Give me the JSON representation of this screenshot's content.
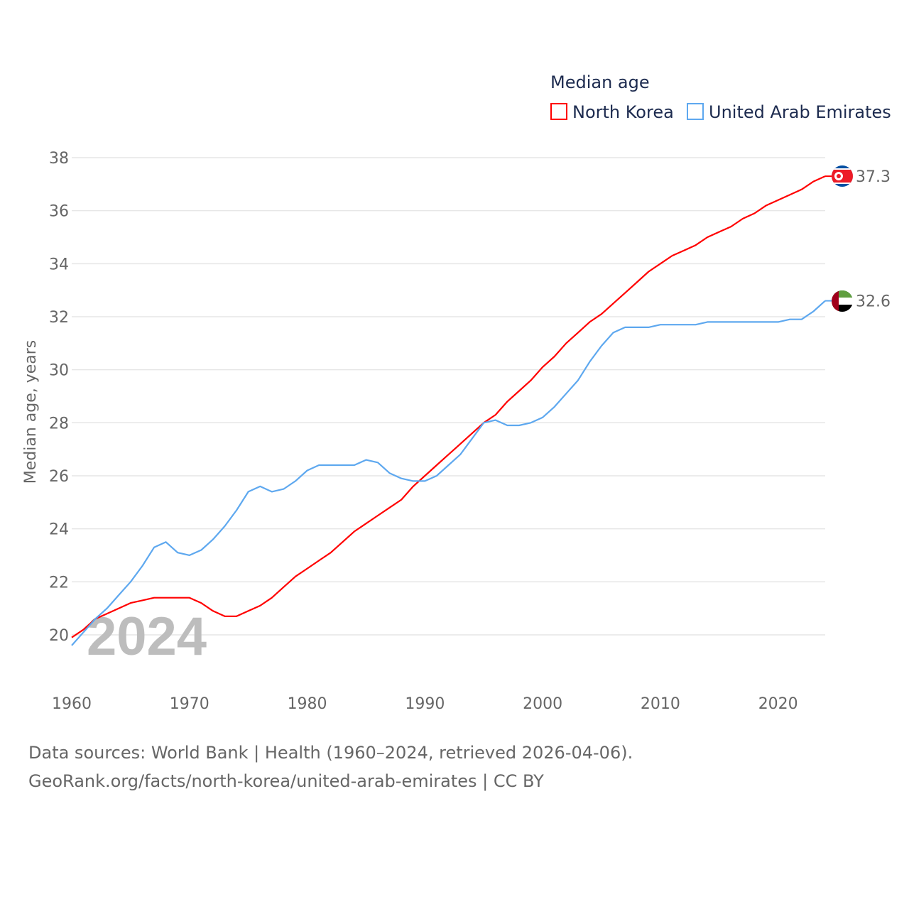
{
  "chart_data": {
    "type": "line",
    "title": "Median age",
    "xlabel": "",
    "ylabel": "Median age, years",
    "xlim": [
      1960,
      2024
    ],
    "ylim": [
      19,
      38
    ],
    "yticks": [
      20,
      22,
      24,
      26,
      28,
      30,
      32,
      34,
      36,
      38
    ],
    "xticks": [
      1960,
      1970,
      1980,
      1990,
      2000,
      2010,
      2020
    ],
    "grid": true,
    "legend_placement": "top-right",
    "year_label": "2024",
    "x": [
      1960,
      1961,
      1962,
      1963,
      1964,
      1965,
      1966,
      1967,
      1968,
      1969,
      1970,
      1971,
      1972,
      1973,
      1974,
      1975,
      1976,
      1977,
      1978,
      1979,
      1980,
      1981,
      1982,
      1983,
      1984,
      1985,
      1986,
      1987,
      1988,
      1989,
      1990,
      1991,
      1992,
      1993,
      1994,
      1995,
      1996,
      1997,
      1998,
      1999,
      2000,
      2001,
      2002,
      2003,
      2004,
      2005,
      2006,
      2007,
      2008,
      2009,
      2010,
      2011,
      2012,
      2013,
      2014,
      2015,
      2016,
      2017,
      2018,
      2019,
      2020,
      2021,
      2022,
      2023,
      2024
    ],
    "series": [
      {
        "name": "North Korea",
        "color": "#ff0000",
        "end_label": "37.3",
        "values": [
          19.9,
          20.2,
          20.6,
          20.8,
          21.0,
          21.2,
          21.3,
          21.4,
          21.4,
          21.4,
          21.4,
          21.2,
          20.9,
          20.7,
          20.7,
          20.9,
          21.1,
          21.4,
          21.8,
          22.2,
          22.5,
          22.8,
          23.1,
          23.5,
          23.9,
          24.2,
          24.5,
          24.8,
          25.1,
          25.6,
          26.0,
          26.4,
          26.8,
          27.2,
          27.6,
          28.0,
          28.3,
          28.8,
          29.2,
          29.6,
          30.1,
          30.5,
          31.0,
          31.4,
          31.8,
          32.1,
          32.5,
          32.9,
          33.3,
          33.7,
          34.0,
          34.3,
          34.5,
          34.7,
          35.0,
          35.2,
          35.4,
          35.7,
          35.9,
          36.2,
          36.4,
          36.6,
          36.8,
          37.1,
          37.3
        ]
      },
      {
        "name": "United Arab Emirates",
        "color": "#5ea8ef",
        "end_label": "32.6",
        "values": [
          19.6,
          20.1,
          20.6,
          21.0,
          21.5,
          22.0,
          22.6,
          23.3,
          23.5,
          23.1,
          23.0,
          23.2,
          23.6,
          24.1,
          24.7,
          25.4,
          25.6,
          25.4,
          25.5,
          25.8,
          26.2,
          26.4,
          26.4,
          26.4,
          26.4,
          26.6,
          26.5,
          26.1,
          25.9,
          25.8,
          25.8,
          26.0,
          26.4,
          26.8,
          27.4,
          28.0,
          28.1,
          27.9,
          27.9,
          28.0,
          28.2,
          28.6,
          29.1,
          29.6,
          30.3,
          30.9,
          31.4,
          31.6,
          31.6,
          31.6,
          31.7,
          31.7,
          31.7,
          31.7,
          31.8,
          31.8,
          31.8,
          31.8,
          31.8,
          31.8,
          31.8,
          31.9,
          31.9,
          32.2,
          32.6
        ]
      }
    ]
  },
  "footer": {
    "line1": "Data sources: World Bank | Health (1960–2024, retrieved 2026-04-06).",
    "line2": "GeoRank.org/facts/north-korea/united-arab-emirates | CC BY"
  }
}
